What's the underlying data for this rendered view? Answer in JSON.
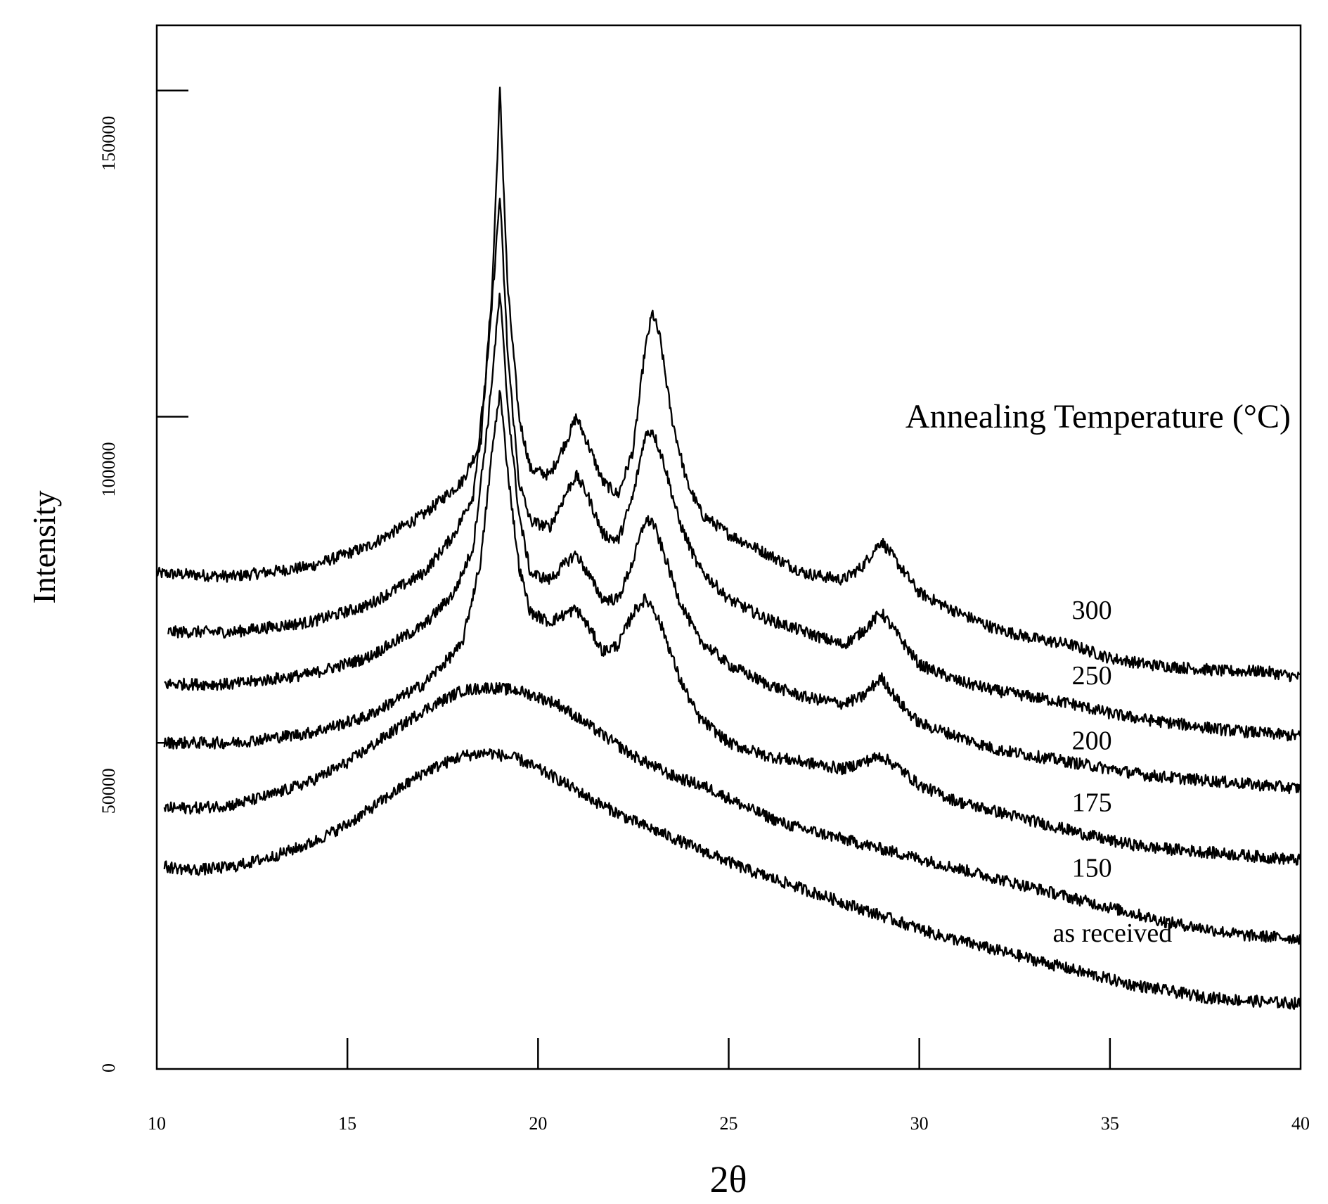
{
  "chart_data": {
    "type": "line",
    "title": "",
    "xlabel": "2θ",
    "ylabel": "Intensity",
    "xlim": [
      10,
      40
    ],
    "ylim": [
      0,
      160000
    ],
    "x_ticks": [
      10,
      15,
      20,
      25,
      30,
      35,
      40
    ],
    "y_ticks": [
      0,
      50000,
      100000,
      150000
    ],
    "grid": false,
    "legend_title": "Annealing Temperature (°C)",
    "legend_position": "right, labels beside each curve",
    "series": [
      {
        "name": "300",
        "label_at": [
          34,
          69000
        ],
        "points": [
          [
            10,
            76000
          ],
          [
            12,
            75500
          ],
          [
            14,
            77000
          ],
          [
            15.5,
            80000
          ],
          [
            17,
            85000
          ],
          [
            18,
            90000
          ],
          [
            18.5,
            96000
          ],
          [
            18.8,
            120000
          ],
          [
            19.0,
            150000
          ],
          [
            19.2,
            120000
          ],
          [
            19.5,
            100000
          ],
          [
            19.8,
            92000
          ],
          [
            20.3,
            91000
          ],
          [
            20.8,
            97000
          ],
          [
            21.0,
            100000
          ],
          [
            21.3,
            96000
          ],
          [
            21.7,
            90000
          ],
          [
            22.1,
            88000
          ],
          [
            22.5,
            95000
          ],
          [
            22.8,
            110000
          ],
          [
            23.0,
            116000
          ],
          [
            23.2,
            112000
          ],
          [
            23.5,
            100000
          ],
          [
            23.9,
            90000
          ],
          [
            24.3,
            85000
          ],
          [
            25,
            82000
          ],
          [
            26,
            79000
          ],
          [
            27,
            76000
          ],
          [
            28,
            75000
          ],
          [
            28.5,
            77000
          ],
          [
            29,
            81000
          ],
          [
            29.5,
            77000
          ],
          [
            30,
            73000
          ],
          [
            31,
            70000
          ],
          [
            32,
            67500
          ],
          [
            33,
            66000
          ],
          [
            34,
            65000
          ],
          [
            35,
            63000
          ],
          [
            36,
            62000
          ],
          [
            38,
            61000
          ],
          [
            39,
            61000
          ],
          [
            40,
            60000
          ]
        ]
      },
      {
        "name": "250",
        "label_at": [
          34,
          59000
        ],
        "points": [
          [
            10.3,
            67000
          ],
          [
            12,
            67000
          ],
          [
            14,
            68500
          ],
          [
            15.5,
            71000
          ],
          [
            17,
            76000
          ],
          [
            17.8,
            82000
          ],
          [
            18.3,
            88000
          ],
          [
            18.7,
            110000
          ],
          [
            19.0,
            134000
          ],
          [
            19.2,
            110000
          ],
          [
            19.5,
            90000
          ],
          [
            19.8,
            84000
          ],
          [
            20.3,
            83000
          ],
          [
            20.8,
            89000
          ],
          [
            21.0,
            91000
          ],
          [
            21.3,
            88000
          ],
          [
            21.7,
            82000
          ],
          [
            22.1,
            81000
          ],
          [
            22.5,
            88000
          ],
          [
            22.8,
            97000
          ],
          [
            23.0,
            98000
          ],
          [
            23.3,
            93000
          ],
          [
            23.7,
            84000
          ],
          [
            24.2,
            77000
          ],
          [
            25,
            72000
          ],
          [
            26,
            69000
          ],
          [
            27,
            67000
          ],
          [
            28,
            65000
          ],
          [
            28.5,
            67000
          ],
          [
            29,
            70000
          ],
          [
            29.5,
            66000
          ],
          [
            30,
            62000
          ],
          [
            31,
            59500
          ],
          [
            32,
            58000
          ],
          [
            33,
            57000
          ],
          [
            34,
            56000
          ],
          [
            35,
            54500
          ],
          [
            36,
            53500
          ],
          [
            38,
            52000
          ],
          [
            40,
            51000
          ]
        ]
      },
      {
        "name": "200",
        "label_at": [
          34,
          49000
        ],
        "points": [
          [
            10.2,
            59000
          ],
          [
            12,
            59000
          ],
          [
            14,
            60500
          ],
          [
            15.5,
            63000
          ],
          [
            17,
            68000
          ],
          [
            17.8,
            73000
          ],
          [
            18.3,
            80000
          ],
          [
            18.7,
            100000
          ],
          [
            19.0,
            119000
          ],
          [
            19.2,
            102000
          ],
          [
            19.5,
            85000
          ],
          [
            19.8,
            76000
          ],
          [
            20.3,
            75000
          ],
          [
            20.8,
            78000
          ],
          [
            21.0,
            79000
          ],
          [
            21.3,
            76000
          ],
          [
            21.7,
            72000
          ],
          [
            22.1,
            72000
          ],
          [
            22.5,
            78000
          ],
          [
            22.8,
            84000
          ],
          [
            23.0,
            84000
          ],
          [
            23.3,
            79000
          ],
          [
            23.7,
            72000
          ],
          [
            24.2,
            66000
          ],
          [
            25,
            62000
          ],
          [
            26,
            59000
          ],
          [
            27,
            57000
          ],
          [
            28,
            56000
          ],
          [
            28.5,
            57000
          ],
          [
            29,
            60000
          ],
          [
            29.5,
            56000
          ],
          [
            30,
            53000
          ],
          [
            31,
            51000
          ],
          [
            32,
            49000
          ],
          [
            33,
            48000
          ],
          [
            34,
            47000
          ],
          [
            35,
            46000
          ],
          [
            36,
            45000
          ],
          [
            38,
            44000
          ],
          [
            40,
            43000
          ]
        ]
      },
      {
        "name": "175",
        "label_at": [
          34,
          39500
        ],
        "points": [
          [
            10.2,
            50000
          ],
          [
            12,
            50000
          ],
          [
            14,
            51500
          ],
          [
            15.5,
            54000
          ],
          [
            17,
            59000
          ],
          [
            18,
            65000
          ],
          [
            18.5,
            78000
          ],
          [
            18.8,
            95000
          ],
          [
            19.0,
            104000
          ],
          [
            19.2,
            92000
          ],
          [
            19.5,
            77000
          ],
          [
            19.8,
            70000
          ],
          [
            20.3,
            68500
          ],
          [
            20.8,
            70000
          ],
          [
            21.0,
            70500
          ],
          [
            21.3,
            68000
          ],
          [
            21.7,
            64000
          ],
          [
            22.1,
            65000
          ],
          [
            22.5,
            70000
          ],
          [
            22.8,
            72000
          ],
          [
            23.0,
            71000
          ],
          [
            23.3,
            67000
          ],
          [
            23.7,
            60000
          ],
          [
            24.2,
            54000
          ],
          [
            25,
            50000
          ],
          [
            26,
            48000
          ],
          [
            27,
            47000
          ],
          [
            28,
            46000
          ],
          [
            28.5,
            47000
          ],
          [
            29,
            48000
          ],
          [
            29.5,
            46000
          ],
          [
            30,
            43500
          ],
          [
            31,
            41000
          ],
          [
            32,
            39500
          ],
          [
            33,
            38000
          ],
          [
            34,
            36500
          ],
          [
            35,
            35000
          ],
          [
            36,
            34000
          ],
          [
            38,
            33000
          ],
          [
            40,
            32000
          ]
        ]
      },
      {
        "name": "150",
        "label_at": [
          34,
          29500
        ],
        "points": [
          [
            10.2,
            40000
          ],
          [
            11,
            40000
          ],
          [
            12,
            40500
          ],
          [
            13,
            42000
          ],
          [
            14,
            44000
          ],
          [
            15,
            47000
          ],
          [
            16,
            51000
          ],
          [
            17,
            55000
          ],
          [
            18,
            58000
          ],
          [
            18.7,
            58500
          ],
          [
            19.5,
            58000
          ],
          [
            20.5,
            56000
          ],
          [
            21.5,
            52000
          ],
          [
            22.5,
            48000
          ],
          [
            23.5,
            45000
          ],
          [
            24.5,
            43000
          ],
          [
            25.5,
            40000
          ],
          [
            26.5,
            37500
          ],
          [
            27.5,
            36000
          ],
          [
            28.5,
            34500
          ],
          [
            29.5,
            33000
          ],
          [
            30.5,
            31500
          ],
          [
            31.5,
            30000
          ],
          [
            32.5,
            28500
          ],
          [
            33.5,
            27000
          ],
          [
            34.5,
            25500
          ],
          [
            35.5,
            24000
          ],
          [
            36.5,
            22500
          ],
          [
            37.5,
            21500
          ],
          [
            38.5,
            20500
          ],
          [
            40,
            20000
          ]
        ]
      },
      {
        "name": "as received",
        "label_at": [
          33.5,
          19500
        ],
        "points": [
          [
            10.2,
            31000
          ],
          [
            11,
            30500
          ],
          [
            12,
            31000
          ],
          [
            13,
            32500
          ],
          [
            14,
            34500
          ],
          [
            15,
            37500
          ],
          [
            16,
            41500
          ],
          [
            17,
            45500
          ],
          [
            18,
            48000
          ],
          [
            18.7,
            48500
          ],
          [
            19.5,
            47500
          ],
          [
            20.5,
            44500
          ],
          [
            21.5,
            41000
          ],
          [
            22.5,
            38000
          ],
          [
            23.5,
            35500
          ],
          [
            24.5,
            33000
          ],
          [
            25.5,
            30500
          ],
          [
            26.5,
            28500
          ],
          [
            27.5,
            26500
          ],
          [
            28.5,
            24500
          ],
          [
            29.5,
            22500
          ],
          [
            30.5,
            20500
          ],
          [
            31.5,
            19000
          ],
          [
            32.5,
            17500
          ],
          [
            33.5,
            16000
          ],
          [
            34.5,
            14500
          ],
          [
            35.5,
            13000
          ],
          [
            36.5,
            12000
          ],
          [
            37.5,
            11000
          ],
          [
            38.5,
            10500
          ],
          [
            40,
            10000
          ]
        ]
      }
    ]
  }
}
